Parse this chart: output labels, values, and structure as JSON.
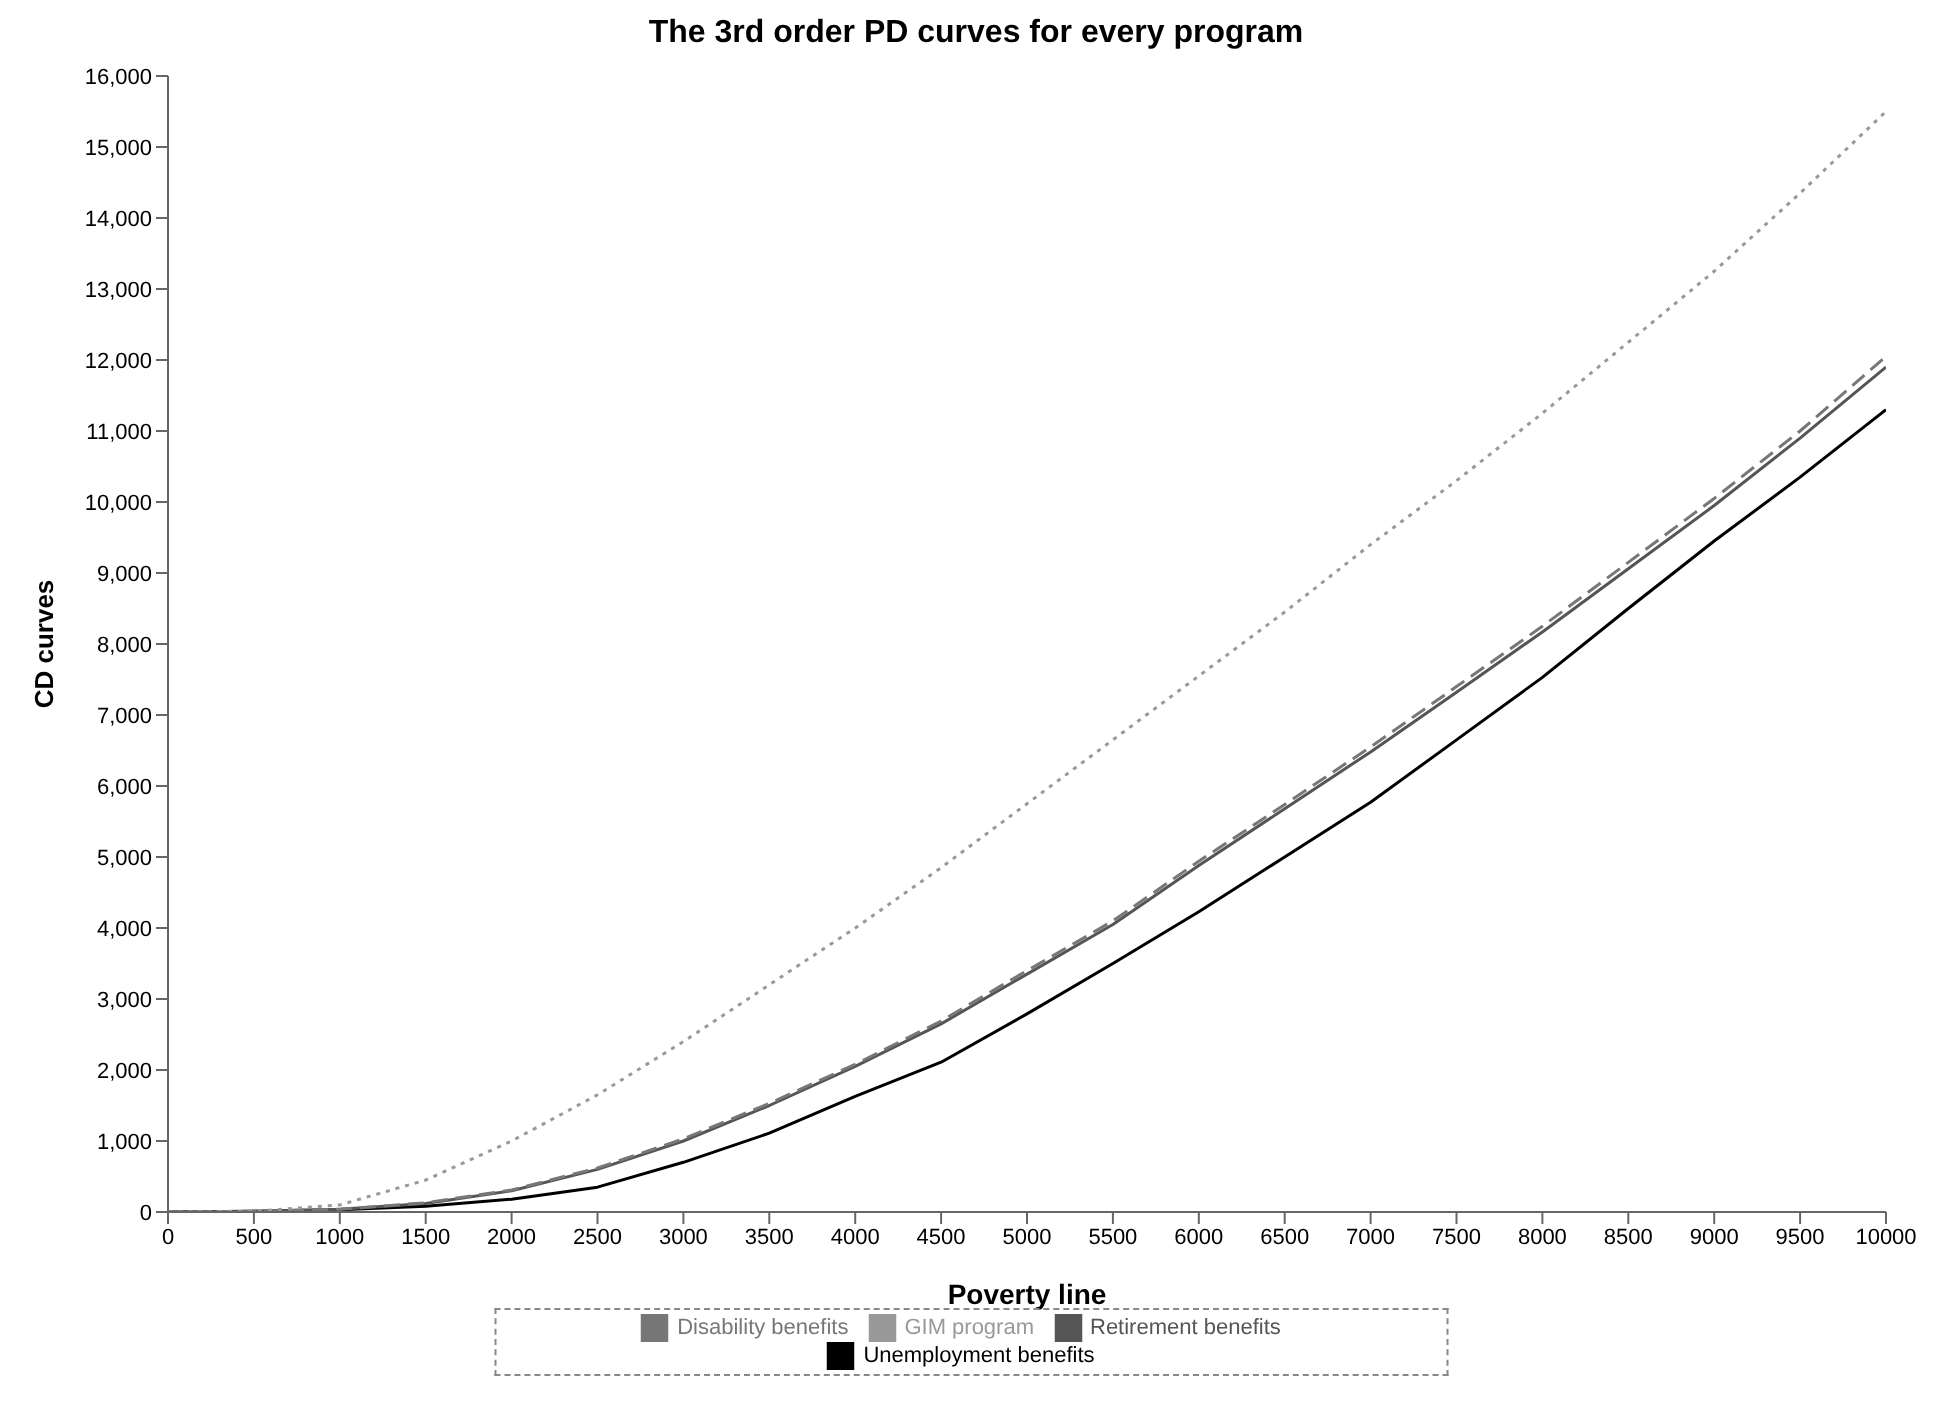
{
  "chart_data": {
    "type": "line",
    "title": "The 3rd order PD curves for every program",
    "xlabel": "Poverty line",
    "ylabel": "CD curves",
    "x": [
      0,
      500,
      1000,
      1500,
      2000,
      2500,
      3000,
      3500,
      4000,
      4500,
      5000,
      5500,
      6000,
      6500,
      7000,
      7500,
      8000,
      8500,
      9000,
      9500,
      10000
    ],
    "series": [
      {
        "name": "Unemployment benefits",
        "color": "#000000",
        "line_style": "solid",
        "values": [
          0,
          10,
          30,
          80,
          180,
          350,
          700,
          1110,
          1630,
          2110,
          2790,
          3500,
          4230,
          5000,
          5770,
          6650,
          7530,
          8500,
          9450,
          10350,
          11300
        ]
      },
      {
        "name": "Retirement benefits",
        "color": "#555555",
        "line_style": "solid",
        "values": [
          0,
          10,
          40,
          120,
          300,
          600,
          1000,
          1500,
          2050,
          2650,
          3350,
          4050,
          4880,
          5680,
          6480,
          7320,
          8170,
          9060,
          9950,
          10900,
          11900
        ]
      },
      {
        "name": "Disability benefits",
        "color": "#777777",
        "line_style": "dashed",
        "values": [
          0,
          10,
          40,
          130,
          310,
          620,
          1030,
          1530,
          2080,
          2690,
          3400,
          4100,
          4940,
          5740,
          6550,
          7400,
          8250,
          9150,
          10050,
          11000,
          12050
        ]
      },
      {
        "name": "GIM program",
        "color": "#999999",
        "line_style": "dotted",
        "values": [
          0,
          10,
          100,
          450,
          1000,
          1650,
          2400,
          3200,
          4000,
          4850,
          5750,
          6650,
          7550,
          8450,
          9400,
          10300,
          11250,
          12250,
          13250,
          14350,
          15500
        ]
      }
    ],
    "xlim": [
      0,
      10000
    ],
    "xticks": [
      0,
      500,
      1000,
      1500,
      2000,
      2500,
      3000,
      3500,
      4000,
      4500,
      5000,
      5500,
      6000,
      6500,
      7000,
      7500,
      8000,
      8500,
      9000,
      9500,
      10000
    ],
    "ylim": [
      0,
      16000
    ],
    "yticks": [
      {
        "value": 0,
        "label": "0"
      },
      {
        "value": 1000,
        "label": "1,000"
      },
      {
        "value": 2000,
        "label": "2,000"
      },
      {
        "value": 3000,
        "label": "3,000"
      },
      {
        "value": 4000,
        "label": "4,000"
      },
      {
        "value": 5000,
        "label": "5,000"
      },
      {
        "value": 6000,
        "label": "6,000"
      },
      {
        "value": 7000,
        "label": "7,000"
      },
      {
        "value": 8000,
        "label": "8,000"
      },
      {
        "value": 9000,
        "label": "9,000"
      },
      {
        "value": 10000,
        "label": "10,000"
      },
      {
        "value": 11000,
        "label": "11,000"
      },
      {
        "value": 12000,
        "label": "12,000"
      },
      {
        "value": 13000,
        "label": "13,000"
      },
      {
        "value": 14000,
        "label": "14,000"
      },
      {
        "value": 15000,
        "label": "15,000"
      },
      {
        "value": 16000,
        "label": "16,000"
      }
    ],
    "grid": false,
    "legend": "bottom",
    "marker": "none"
  }
}
